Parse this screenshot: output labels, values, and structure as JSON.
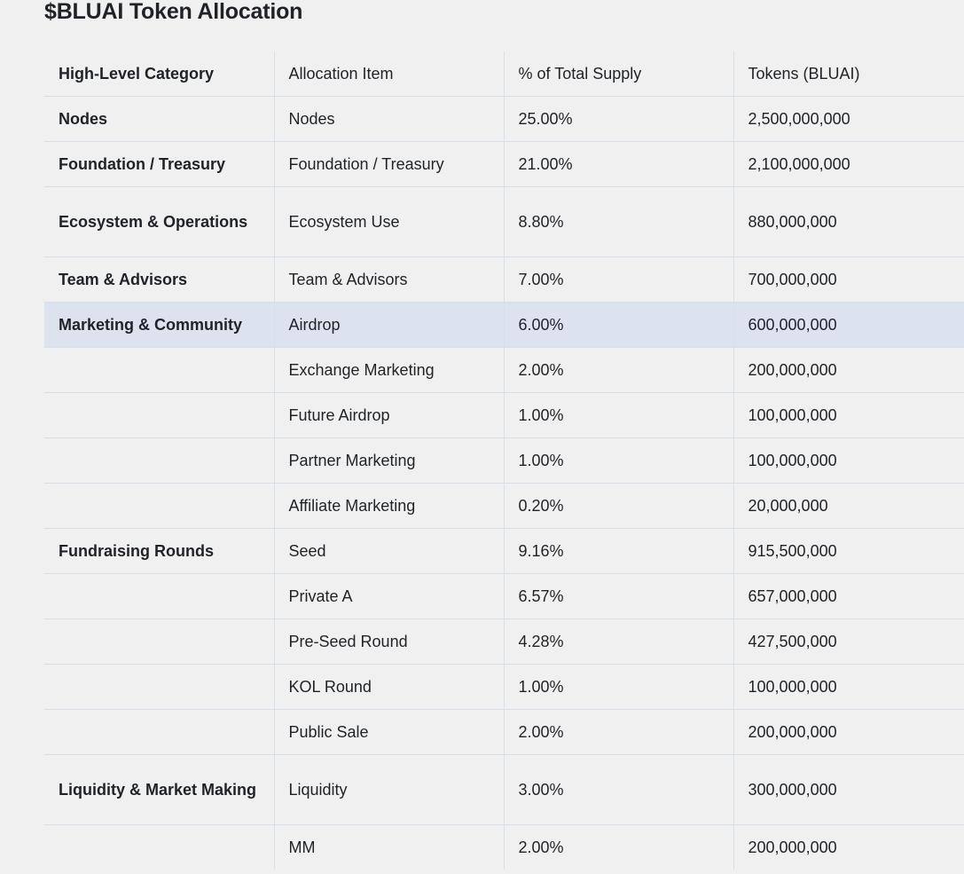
{
  "title": "$BLUAI Token Allocation",
  "table": {
    "headers": [
      "High-Level Category",
      "Allocation Item",
      "% of Total Supply",
      "Tokens (BLUAI)"
    ],
    "rows": [
      [
        "Nodes",
        "Nodes",
        "25.00%",
        "2,500,000,000"
      ],
      [
        "Foundation / Treasury",
        "Foundation / Treasury",
        "21.00%",
        "2,100,000,000"
      ],
      [
        "Ecosystem & Operations",
        "Ecosystem Use",
        "8.80%",
        "880,000,000"
      ],
      [
        "Team & Advisors",
        "Team & Advisors",
        "7.00%",
        "700,000,000"
      ],
      [
        "Marketing & Community",
        "Airdrop",
        "6.00%",
        "600,000,000"
      ],
      [
        "",
        "Exchange Marketing",
        "2.00%",
        "200,000,000"
      ],
      [
        "",
        "Future Airdrop",
        "1.00%",
        "100,000,000"
      ],
      [
        "",
        "Partner Marketing",
        "1.00%",
        "100,000,000"
      ],
      [
        "",
        "Affiliate Marketing",
        "0.20%",
        "20,000,000"
      ],
      [
        "Fundraising Rounds",
        "Seed",
        "9.16%",
        "915,500,000"
      ],
      [
        "",
        "Private A",
        "6.57%",
        "657,000,000"
      ],
      [
        "",
        "Pre-Seed Round",
        "4.28%",
        "427,500,000"
      ],
      [
        "",
        "KOL Round",
        "1.00%",
        "100,000,000"
      ],
      [
        "",
        "Public Sale",
        "2.00%",
        "200,000,000"
      ],
      [
        "Liquidity & Market Making",
        "Liquidity",
        "3.00%",
        "300,000,000"
      ],
      [
        "",
        "MM",
        "2.00%",
        "200,000,000"
      ]
    ],
    "highlighted_row": 4
  }
}
